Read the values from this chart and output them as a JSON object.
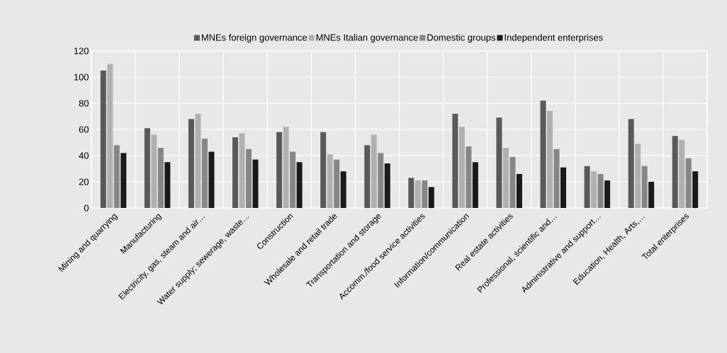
{
  "chart_data": {
    "type": "bar",
    "categories": [
      "Mining and quarrying",
      "Manufacturing",
      "Electricity, gas, steam and air…",
      "Water supply; sewerage, waste…",
      "Construction",
      "Wholesale and retail trade",
      "Transportation and storage",
      "Accomm./food service activities",
      "Information/communication",
      "Real estate activities",
      "Professional, scientific and…",
      "Administrative and support…",
      "Education, Health, Arts,…",
      "Total enterprises"
    ],
    "series": [
      {
        "name": "MNEs foreign governance",
        "color": "#595959",
        "values": [
          105,
          61,
          68,
          54,
          58,
          58,
          48,
          23,
          72,
          69,
          82,
          32,
          68,
          55
        ]
      },
      {
        "name": "MNEs Italian governance",
        "color": "#b0b0b0",
        "values": [
          110,
          56,
          72,
          57,
          62,
          41,
          56,
          21,
          62,
          46,
          74,
          28,
          49,
          52
        ]
      },
      {
        "name": "Domestic groups",
        "color": "#868686",
        "values": [
          48,
          46,
          53,
          45,
          43,
          37,
          42,
          21,
          47,
          39,
          45,
          26,
          32,
          38
        ]
      },
      {
        "name": "Independent enterprises",
        "color": "#1a1a1a",
        "values": [
          42,
          35,
          43,
          37,
          35,
          28,
          34,
          16,
          35,
          26,
          31,
          21,
          20,
          28
        ]
      }
    ],
    "ylim": [
      0,
      120
    ],
    "yticks": [
      0,
      20,
      40,
      60,
      80,
      100,
      120
    ],
    "grid": true,
    "legend": "top"
  }
}
